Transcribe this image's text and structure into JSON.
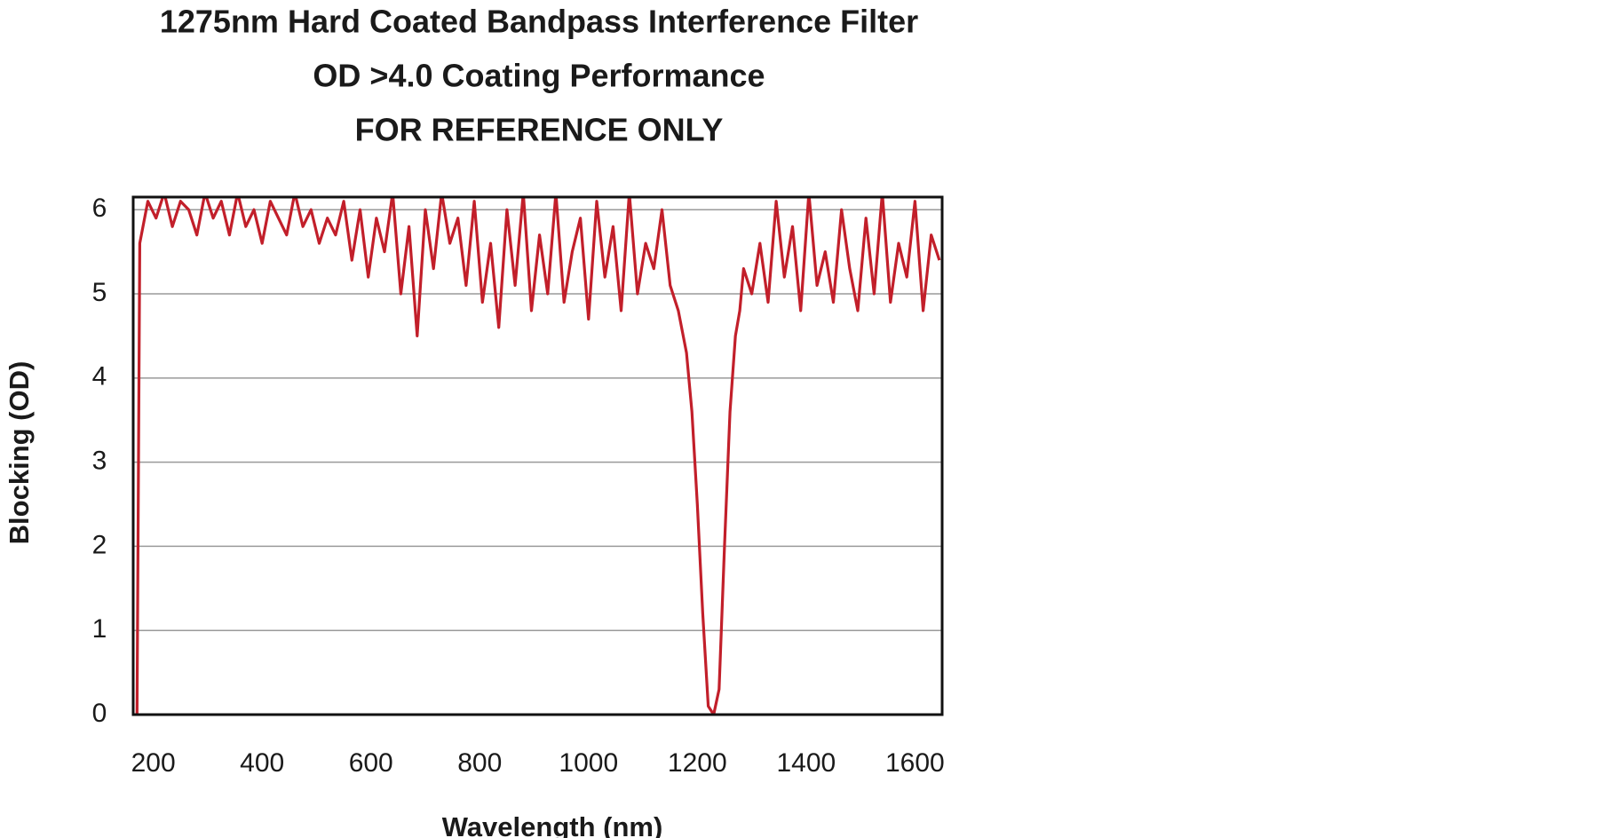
{
  "chart_data": {
    "type": "line",
    "title": [
      "1275nm Hard Coated Bandpass Interference Filter",
      "OD >4.0 Coating Performance",
      "FOR REFERENCE ONLY"
    ],
    "x_label": "Wavelength (nm)",
    "y_label": "Blocking (OD)",
    "xlim": [
      163,
      1650
    ],
    "ylim": [
      0,
      6.15
    ],
    "xticks": [
      200,
      400,
      600,
      800,
      1000,
      1200,
      1400,
      1600
    ],
    "yticks": [
      0,
      1,
      2,
      3,
      4,
      5,
      6
    ],
    "grid": true,
    "series": [
      {
        "color": "#c21f2a",
        "x": [
          170,
          175,
          190,
          205,
          220,
          235,
          250,
          265,
          280,
          295,
          310,
          325,
          340,
          355,
          370,
          385,
          400,
          415,
          430,
          445,
          460,
          475,
          490,
          505,
          520,
          535,
          550,
          565,
          580,
          595,
          610,
          625,
          640,
          655,
          670,
          685,
          700,
          715,
          730,
          745,
          760,
          775,
          790,
          805,
          820,
          835,
          850,
          865,
          880,
          895,
          910,
          925,
          940,
          955,
          970,
          985,
          1000,
          1015,
          1030,
          1045,
          1060,
          1075,
          1090,
          1105,
          1120,
          1135,
          1150,
          1165,
          1180,
          1190,
          1200,
          1210,
          1220,
          1230,
          1240,
          1250,
          1260,
          1270,
          1278,
          1285,
          1300,
          1315,
          1330,
          1345,
          1360,
          1375,
          1390,
          1405,
          1420,
          1435,
          1450,
          1465,
          1480,
          1495,
          1510,
          1525,
          1540,
          1555,
          1570,
          1585,
          1600,
          1615,
          1630,
          1645
        ],
        "values": [
          0,
          5.6,
          6.1,
          5.9,
          6.2,
          5.8,
          6.1,
          6.0,
          5.7,
          6.2,
          5.9,
          6.1,
          5.7,
          6.2,
          5.8,
          6.0,
          5.6,
          6.1,
          5.9,
          5.7,
          6.2,
          5.8,
          6.0,
          5.6,
          5.9,
          5.7,
          6.1,
          5.4,
          6.0,
          5.2,
          5.9,
          5.5,
          6.2,
          5.0,
          5.8,
          4.5,
          6.0,
          5.3,
          6.2,
          5.6,
          5.9,
          5.1,
          6.1,
          4.9,
          5.6,
          4.6,
          6.0,
          5.1,
          6.2,
          4.8,
          5.7,
          5.0,
          6.2,
          4.9,
          5.5,
          5.9,
          4.7,
          6.1,
          5.2,
          5.8,
          4.8,
          6.2,
          5.0,
          5.6,
          5.3,
          6.0,
          5.1,
          4.8,
          4.3,
          3.6,
          2.5,
          1.2,
          0.1,
          0,
          0.3,
          2.0,
          3.6,
          4.5,
          4.8,
          5.3,
          5.0,
          5.6,
          4.9,
          6.1,
          5.2,
          5.8,
          4.8,
          6.2,
          5.1,
          5.5,
          4.9,
          6.0,
          5.3,
          4.8,
          5.9,
          5.0,
          6.2,
          4.9,
          5.6,
          5.2,
          6.1,
          4.8,
          5.7,
          5.4
        ]
      }
    ]
  }
}
